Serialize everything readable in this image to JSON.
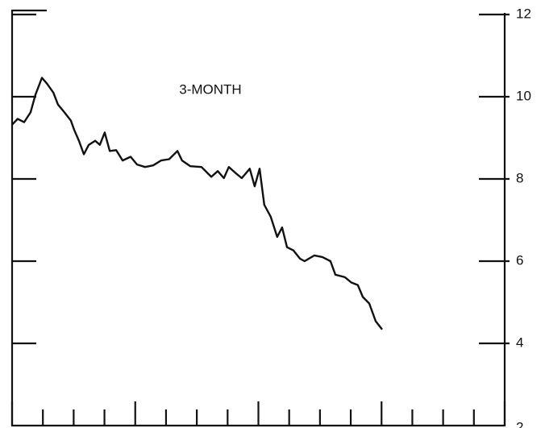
{
  "chart_data": {
    "type": "line",
    "annotation": "3-MONTH",
    "xlim": [
      0,
      16
    ],
    "xticks": [
      0,
      1,
      2,
      3,
      4,
      5,
      6,
      7,
      8,
      9,
      10,
      11,
      12,
      13,
      14,
      15,
      16
    ],
    "major_xticks": [
      0,
      4,
      8,
      12,
      16
    ],
    "ylim": [
      2,
      12
    ],
    "yticks": [
      2,
      4,
      6,
      8,
      10,
      12
    ],
    "y_axis_side": "right",
    "grid": false,
    "series": [
      {
        "color": "#111111",
        "x": [
          0,
          0.18,
          0.39,
          0.6,
          0.76,
          0.97,
          1.13,
          1.34,
          1.49,
          1.7,
          1.91,
          2.02,
          2.17,
          2.33,
          2.49,
          2.7,
          2.85,
          3.01,
          3.17,
          3.38,
          3.59,
          3.85,
          4.06,
          4.32,
          4.58,
          4.84,
          5.1,
          5.37,
          5.52,
          5.79,
          6.15,
          6.47,
          6.68,
          6.88,
          7.04,
          7.25,
          7.46,
          7.72,
          7.88,
          8.04,
          8.19,
          8.4,
          8.61,
          8.77,
          8.93,
          9.14,
          9.35,
          9.5,
          9.82,
          10.08,
          10.34,
          10.5,
          10.81,
          11.02,
          11.23,
          11.39,
          11.6,
          11.81,
          12.02
        ],
        "values": [
          9.32,
          9.46,
          9.38,
          9.62,
          10.05,
          10.46,
          10.32,
          10.1,
          9.81,
          9.62,
          9.42,
          9.19,
          8.93,
          8.6,
          8.83,
          8.93,
          8.83,
          9.13,
          8.68,
          8.7,
          8.45,
          8.54,
          8.35,
          8.29,
          8.33,
          8.45,
          8.48,
          8.68,
          8.45,
          8.31,
          8.29,
          8.05,
          8.19,
          8.02,
          8.29,
          8.15,
          8.02,
          8.25,
          7.82,
          8.25,
          7.37,
          7.08,
          6.59,
          6.82,
          6.34,
          6.26,
          6.06,
          6.0,
          6.14,
          6.1,
          6.0,
          5.67,
          5.61,
          5.48,
          5.42,
          5.13,
          4.97,
          4.54,
          4.34
        ]
      }
    ]
  }
}
